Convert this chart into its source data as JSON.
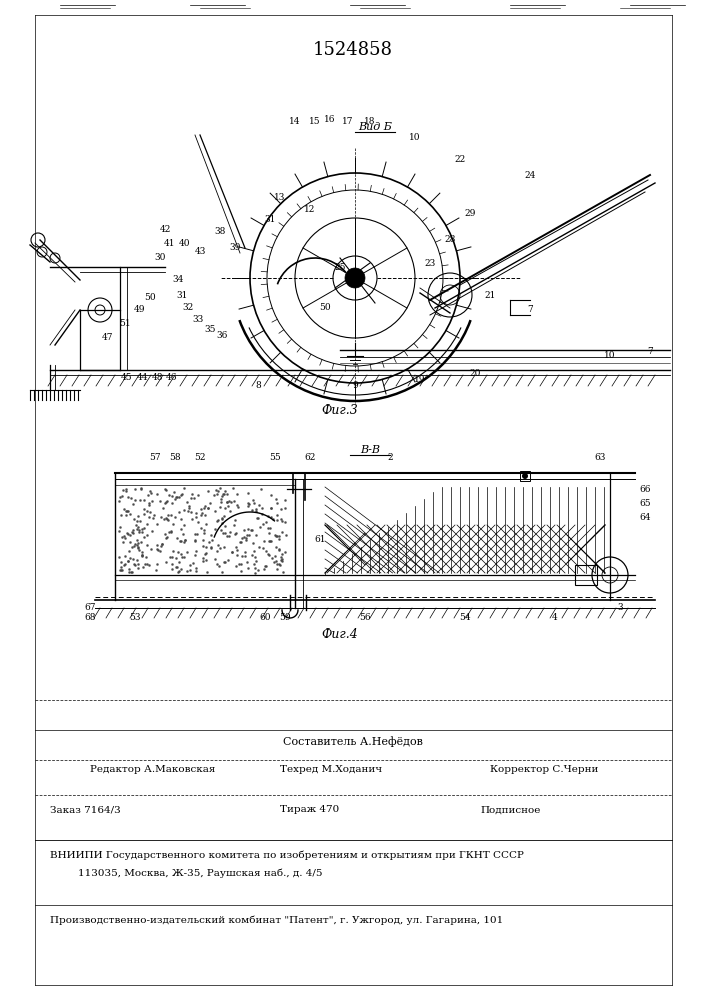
{
  "patent_number": "1524858",
  "composer": "Составитель А.Нефёдов",
  "editor": "Редактор А.Маковская",
  "techred": "Техред М.Ходанич",
  "corrector": "Корректор С.Черни",
  "zakaz": "Заказ 7164/3",
  "tirazh": "Тираж 470",
  "podpisnoe": "Подписное",
  "vniiipi": "ВНИИПИ Государственного комитета по изобретениям и открытиям при ГКНТ СССР",
  "address": "113035, Москва, Ж-35, Раушская наб., д. 4/5",
  "patent_combine": "Производственно-издательский комбинат \"Патент\", г. Ужгород, ул. Гагарина, 101",
  "bg_color": "#ffffff"
}
